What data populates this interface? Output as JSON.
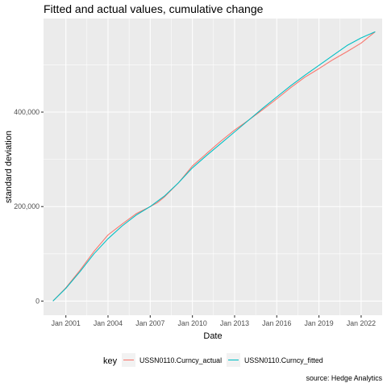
{
  "chart_data": {
    "type": "line",
    "title": "Fitted and actual values, cumulative change",
    "xlabel": "Date",
    "ylabel": "standard deviation",
    "caption": "source: Hedge Analytics",
    "xlim": [
      "1999-06-01",
      "2023-07-01"
    ],
    "ylim": [
      -30000,
      598000
    ],
    "x_ticks": [
      "Jan 2001",
      "Jan 2004",
      "Jan 2007",
      "Jan 2010",
      "Jan 2013",
      "Jan 2016",
      "Jan 2019",
      "Jan 2022"
    ],
    "y_ticks": [
      "0",
      "200,000",
      "400,000"
    ],
    "legend": {
      "title": "key",
      "position": "bottom"
    },
    "grid": true,
    "series": [
      {
        "name": "USSN0110.Curncy_actual",
        "color": "#F8766D",
        "points": [
          [
            "2000-02-01",
            0
          ],
          [
            "2001-01-01",
            28000
          ],
          [
            "2002-01-01",
            65000
          ],
          [
            "2003-01-01",
            105000
          ],
          [
            "2004-01-01",
            140000
          ],
          [
            "2005-01-01",
            163000
          ],
          [
            "2006-01-01",
            185000
          ],
          [
            "2007-01-01",
            200000
          ],
          [
            "2007-07-01",
            208000
          ],
          [
            "2008-01-01",
            220000
          ],
          [
            "2009-01-01",
            250000
          ],
          [
            "2010-01-01",
            286000
          ],
          [
            "2011-01-01",
            312000
          ],
          [
            "2012-01-01",
            338000
          ],
          [
            "2013-01-01",
            362000
          ],
          [
            "2014-01-01",
            383000
          ],
          [
            "2015-01-01",
            405000
          ],
          [
            "2016-01-01",
            428000
          ],
          [
            "2017-01-01",
            452000
          ],
          [
            "2018-01-01",
            474000
          ],
          [
            "2019-01-01",
            492000
          ],
          [
            "2020-01-01",
            511000
          ],
          [
            "2021-01-01",
            528000
          ],
          [
            "2022-01-01",
            546000
          ],
          [
            "2022-07-01",
            558000
          ],
          [
            "2023-01-01",
            570000
          ]
        ]
      },
      {
        "name": "USSN0110.Curncy_fitted",
        "color": "#00BFC4",
        "points": [
          [
            "2000-02-01",
            0
          ],
          [
            "2001-01-01",
            27000
          ],
          [
            "2002-01-01",
            62000
          ],
          [
            "2003-01-01",
            100000
          ],
          [
            "2004-01-01",
            132000
          ],
          [
            "2005-01-01",
            159000
          ],
          [
            "2006-01-01",
            182000
          ],
          [
            "2007-01-01",
            200000
          ],
          [
            "2008-01-01",
            222000
          ],
          [
            "2009-01-01",
            250000
          ],
          [
            "2010-01-01",
            282000
          ],
          [
            "2011-01-01",
            308000
          ],
          [
            "2012-01-01",
            333000
          ],
          [
            "2013-01-01",
            358000
          ],
          [
            "2014-01-01",
            383000
          ],
          [
            "2015-01-01",
            408000
          ],
          [
            "2016-01-01",
            432000
          ],
          [
            "2017-01-01",
            456000
          ],
          [
            "2018-01-01",
            478000
          ],
          [
            "2019-01-01",
            499000
          ],
          [
            "2020-01-01",
            520000
          ],
          [
            "2021-01-01",
            541000
          ],
          [
            "2022-01-01",
            557000
          ],
          [
            "2023-01-01",
            570000
          ]
        ]
      }
    ]
  }
}
